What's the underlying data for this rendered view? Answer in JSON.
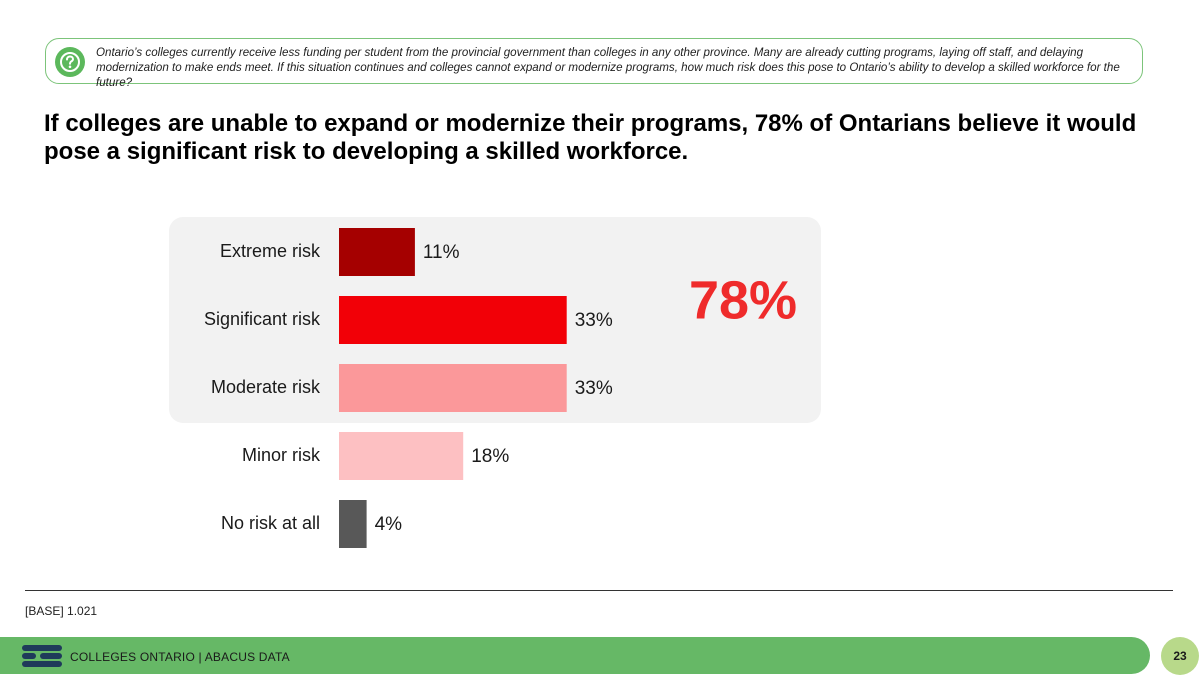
{
  "question": {
    "icon": "question-icon",
    "text": "Ontario’s colleges currently receive less funding per student from the provincial government than colleges in any other province. Many are already cutting programs, laying off staff, and delaying modernization to make ends meet. If this situation continues and colleges cannot expand or modernize programs, how much risk does this pose to Ontario’s ability to develop a skilled workforce for the future?"
  },
  "headline": "If colleges are unable to expand or modernize their programs, 78% of Ontarians believe it would pose a significant risk to developing a skilled workforce.",
  "chart_data": {
    "type": "bar",
    "orientation": "horizontal",
    "categories": [
      "Extreme risk",
      "Significant risk",
      "Moderate risk",
      "Minor risk",
      "No risk at all"
    ],
    "values": [
      11,
      33,
      33,
      18,
      4
    ],
    "value_labels": [
      "11%",
      "33%",
      "33%",
      "18%",
      "4%"
    ],
    "colors": [
      "#a50000",
      "#f20007",
      "#fb989a",
      "#fdc0c2",
      "#585858"
    ],
    "highlight": {
      "categories": [
        "Extreme risk",
        "Significant risk",
        "Moderate risk"
      ],
      "label": "78%",
      "color": "#ef2b2b",
      "background": "#f2f2f2"
    },
    "title": "",
    "xlabel": "",
    "ylabel": "",
    "grid": false
  },
  "base_note": "[BASE] 1.021",
  "footer": {
    "logo": "colleges-ontario-logo",
    "text": "COLLEGES ONTARIO  |  ABACUS DATA",
    "page_number": "23",
    "bar_color": "#66b866"
  }
}
